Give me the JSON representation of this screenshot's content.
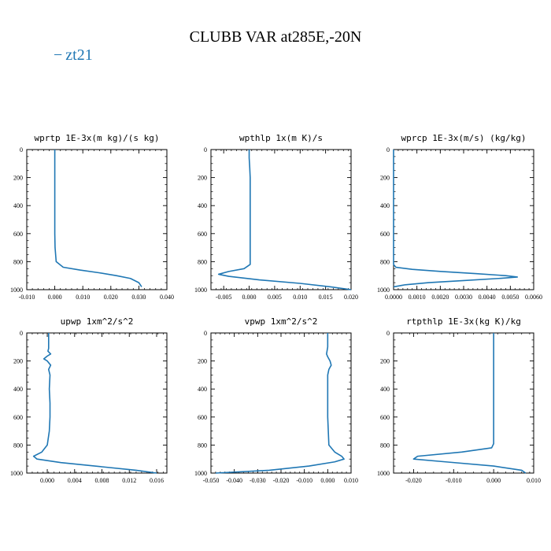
{
  "title": "CLUBB VAR at285E,-20N",
  "legend": {
    "label": "zt21",
    "dash": "−",
    "color": "#1f77b4"
  },
  "chart_data": [
    {
      "type": "line",
      "title": "wprtp  1E-3x(m kg)/(s kg)",
      "xlim": [
        -0.01,
        0.04
      ],
      "ylim": [
        1000,
        0
      ],
      "xticks": [
        "-0.010",
        "0.000",
        "0.010",
        "0.020",
        "0.030",
        "0.040"
      ],
      "xtick_values": [
        -0.01,
        0.0,
        0.01,
        0.02,
        0.03,
        0.04
      ],
      "yticks": [
        "0",
        "200",
        "400",
        "600",
        "800",
        "1000"
      ],
      "ytick_values": [
        0,
        200,
        400,
        600,
        800,
        1000
      ],
      "series": [
        {
          "x": [
            0.0,
            0.0,
            0.0,
            0.0,
            0.0,
            0.0,
            0.0,
            0.0001,
            0.0005,
            0.003,
            0.009,
            0.016,
            0.022,
            0.027,
            0.03,
            0.031
          ],
          "y": [
            0,
            100,
            200,
            300,
            400,
            500,
            600,
            700,
            800,
            840,
            860,
            880,
            900,
            920,
            950,
            980
          ]
        }
      ]
    },
    {
      "type": "line",
      "title": "wpthlp  1x(m K)/s",
      "xlim": [
        -0.0075,
        0.02
      ],
      "ylim": [
        1000,
        0
      ],
      "xticks": [
        "-0.005",
        "0.000",
        "0.005",
        "0.010",
        "0.015",
        "0.020"
      ],
      "xtick_values": [
        -0.005,
        0.0,
        0.005,
        0.01,
        0.015,
        0.02
      ],
      "yticks": [
        "0",
        "200",
        "400",
        "600",
        "800",
        "1000"
      ],
      "ytick_values": [
        0,
        200,
        400,
        600,
        800,
        1000
      ],
      "series": [
        {
          "x": [
            0.0,
            0.0,
            0.0001,
            0.0002,
            0.0002,
            0.0002,
            0.0002,
            0.0002,
            0.0002,
            0.0002,
            -0.001,
            -0.004,
            -0.006,
            -0.004,
            0.002,
            0.01,
            0.016,
            0.02
          ],
          "y": [
            0,
            60,
            120,
            200,
            300,
            400,
            500,
            600,
            700,
            820,
            850,
            870,
            890,
            905,
            930,
            955,
            980,
            1000
          ]
        }
      ]
    },
    {
      "type": "line",
      "title": "wprcp  1E-3x(m/s) (kg/kg)",
      "xlim": [
        0.0,
        0.006
      ],
      "ylim": [
        1000,
        0
      ],
      "xticks": [
        "0.0000",
        "0.0010",
        "0.0020",
        "0.0030",
        "0.0040",
        "0.0050",
        "0.0060"
      ],
      "xtick_values": [
        0.0,
        0.001,
        0.002,
        0.003,
        0.004,
        0.005,
        0.006
      ],
      "yticks": [
        "0",
        "200",
        "400",
        "600",
        "800",
        "1000"
      ],
      "ytick_values": [
        0,
        200,
        400,
        600,
        800,
        1000
      ],
      "series": [
        {
          "x": [
            0,
            0,
            0,
            0,
            0.0001,
            0.0008,
            0.002,
            0.0035,
            0.0048,
            0.0053,
            0.0045,
            0.003,
            0.0015,
            0.0005,
            0.0
          ],
          "y": [
            0,
            200,
            600,
            820,
            840,
            855,
            870,
            885,
            900,
            910,
            920,
            935,
            950,
            965,
            980
          ]
        }
      ]
    },
    {
      "type": "line",
      "title": "upwp   1xm^2/s^2",
      "xlim": [
        -0.003,
        0.0175
      ],
      "ylim": [
        1000,
        0
      ],
      "xticks": [
        "0.000",
        "0.004",
        "0.008",
        "0.012",
        "0.016"
      ],
      "xtick_values": [
        0.0,
        0.004,
        0.008,
        0.012,
        0.016
      ],
      "yticks": [
        "0",
        "200",
        "400",
        "600",
        "800",
        "1000"
      ],
      "ytick_values": [
        0,
        200,
        400,
        600,
        800,
        1000
      ],
      "series": [
        {
          "x": [
            0.0002,
            0.0002,
            0.0001,
            0.0005,
            0.0,
            -0.0005,
            0.0,
            0.0005,
            0.0002,
            0.0004,
            0.0003,
            0.0004,
            0.0004,
            0.0003,
            0.0,
            -0.0008,
            -0.002,
            -0.0015,
            0.002,
            0.008,
            0.013,
            0.016
          ],
          "y": [
            0,
            110,
            130,
            150,
            165,
            185,
            200,
            230,
            260,
            300,
            400,
            500,
            600,
            700,
            800,
            850,
            880,
            900,
            925,
            955,
            980,
            1000
          ]
        }
      ]
    },
    {
      "type": "line",
      "title": "vpwp   1xm^2/s^2",
      "xlim": [
        -0.05,
        0.01
      ],
      "ylim": [
        1000,
        0
      ],
      "xticks": [
        "-0.050",
        "-0.040",
        "-0.030",
        "-0.020",
        "-0.010",
        "0.000",
        "0.010"
      ],
      "xtick_values": [
        -0.05,
        -0.04,
        -0.03,
        -0.02,
        -0.01,
        0.0,
        0.01
      ],
      "yticks": [
        "0",
        "200",
        "400",
        "600",
        "800",
        "1000"
      ],
      "ytick_values": [
        0,
        200,
        400,
        600,
        800,
        1000
      ],
      "series": [
        {
          "x": [
            0.0,
            0.0,
            -0.0005,
            0.0,
            0.001,
            0.0015,
            0.0005,
            0.0,
            0.0,
            0.0,
            0.0,
            0.0005,
            0.003,
            0.006,
            0.007,
            0.003,
            -0.008,
            -0.025,
            -0.048
          ],
          "y": [
            0,
            100,
            150,
            170,
            200,
            230,
            260,
            300,
            400,
            500,
            600,
            800,
            850,
            880,
            900,
            920,
            950,
            980,
            1000
          ]
        }
      ]
    },
    {
      "type": "line",
      "title": "rtpthlp  1E-3x(kg K)/kg",
      "xlim": [
        -0.025,
        0.01
      ],
      "ylim": [
        1000,
        0
      ],
      "xticks": [
        "-0.020",
        "-0.010",
        "0.000",
        "0.010"
      ],
      "xtick_values": [
        -0.02,
        -0.01,
        0.0,
        0.01
      ],
      "yticks": [
        "0",
        "200",
        "400",
        "600",
        "800",
        "1000"
      ],
      "ytick_values": [
        0,
        200,
        400,
        600,
        800,
        1000
      ],
      "series": [
        {
          "x": [
            0.0,
            0.0,
            0.0,
            0.0,
            0.0,
            -0.0005,
            -0.008,
            -0.019,
            -0.02,
            -0.012,
            0.0,
            0.007,
            0.008
          ],
          "y": [
            0,
            200,
            400,
            600,
            790,
            820,
            850,
            880,
            900,
            920,
            950,
            980,
            1000
          ]
        }
      ]
    }
  ]
}
